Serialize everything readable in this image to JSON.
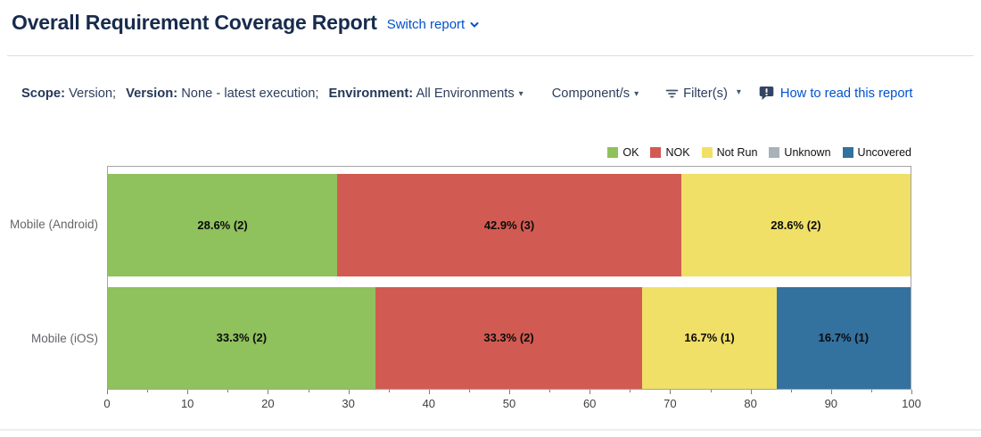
{
  "header": {
    "title": "Overall Requirement Coverage Report",
    "switch_report_label": "Switch report"
  },
  "filter_bar": {
    "scope_label": "Scope:",
    "scope_value": "Version;",
    "version_label": "Version:",
    "version_value": "None - latest execution;",
    "environment_label": "Environment:",
    "environment_value": "All Environments",
    "components_label": "Component/s",
    "filters_label": "Filter(s)",
    "help_label": "How to read this report"
  },
  "colors": {
    "title_text": "#172B4D",
    "link": "#0052CC",
    "help_icon": "#344563",
    "divider": "#DCDFE4",
    "plot_border": "#A3A3A3",
    "category_label": "#63666A"
  },
  "chart_data": {
    "type": "bar",
    "orientation": "horizontal",
    "stacked": true,
    "title": "",
    "xlabel": "",
    "ylabel": "",
    "xlim": [
      0,
      100
    ],
    "x_major_ticks": [
      0,
      10,
      20,
      30,
      40,
      50,
      60,
      70,
      80,
      90,
      100
    ],
    "x_minor_tick_step": 5,
    "grid": false,
    "legend_position": "top-right",
    "legend": [
      "OK",
      "NOK",
      "Not Run",
      "Unknown",
      "Uncovered"
    ],
    "colors": {
      "OK": "#8FC15D",
      "NOK": "#D15B52",
      "Not Run": "#F0E068",
      "Unknown": "#A9B2BA",
      "Uncovered": "#33719F"
    },
    "categories": [
      "Mobile (Android)",
      "Mobile (iOS)"
    ],
    "bars": [
      {
        "category": "Mobile (Android)",
        "segments": [
          {
            "series": "OK",
            "value": 28.6,
            "count": 2,
            "label": "28.6% (2)"
          },
          {
            "series": "NOK",
            "value": 42.9,
            "count": 3,
            "label": "42.9% (3)"
          },
          {
            "series": "Not Run",
            "value": 28.6,
            "count": 2,
            "label": "28.6% (2)"
          }
        ]
      },
      {
        "category": "Mobile (iOS)",
        "segments": [
          {
            "series": "OK",
            "value": 33.3,
            "count": 2,
            "label": "33.3% (2)"
          },
          {
            "series": "NOK",
            "value": 33.3,
            "count": 2,
            "label": "33.3% (2)"
          },
          {
            "series": "Not Run",
            "value": 16.7,
            "count": 1,
            "label": "16.7% (1)"
          },
          {
            "series": "Uncovered",
            "value": 16.7,
            "count": 1,
            "label": "16.7% (1)"
          }
        ]
      }
    ]
  }
}
